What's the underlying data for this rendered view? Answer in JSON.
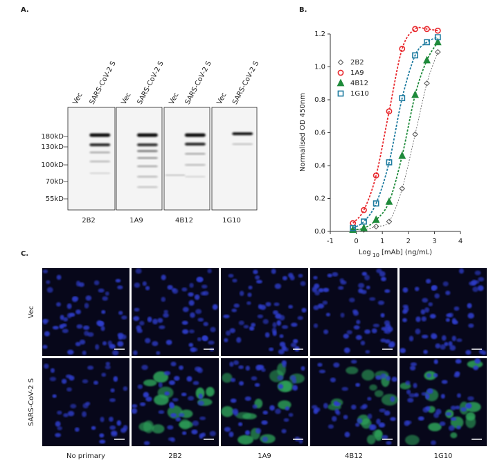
{
  "panel_a": {
    "label": "A.",
    "lanes": [
      "Vec",
      "SARS-CoV-2 S"
    ],
    "markers": [
      "180kD",
      "130kD",
      "100kD",
      "70kD",
      "55kD"
    ],
    "blots": [
      "2B2",
      "1A9",
      "4B12",
      "1G10"
    ]
  },
  "chart_data": {
    "type": "scatter",
    "panel_label": "B.",
    "xlabel": {
      "main": "Log",
      "sub": "10",
      "rest": "[mAb] (ng/mL)"
    },
    "ylabel": "Normalised OD 450nm",
    "x": [
      -0.13,
      0.29,
      0.76,
      1.26,
      1.76,
      2.26,
      2.71,
      3.13
    ],
    "series": [
      {
        "name": "2B2",
        "color": "#555555",
        "marker": "diamond",
        "values": [
          0.01,
          0.01,
          0.03,
          0.06,
          0.26,
          0.59,
          0.9,
          1.09
        ]
      },
      {
        "name": "1A9",
        "color": "#e8282d",
        "marker": "circle",
        "values": [
          0.05,
          0.13,
          0.34,
          0.73,
          1.11,
          1.23,
          1.23,
          1.22
        ]
      },
      {
        "name": "4B12",
        "color": "#1e8a3a",
        "marker": "triangle",
        "values": [
          0.01,
          0.02,
          0.07,
          0.18,
          0.46,
          0.83,
          1.04,
          1.15
        ]
      },
      {
        "name": "1G10",
        "color": "#1f7ca0",
        "marker": "square",
        "values": [
          0.02,
          0.06,
          0.17,
          0.42,
          0.81,
          1.07,
          1.15,
          1.18
        ]
      }
    ],
    "xlim": [
      -1,
      4
    ],
    "xticks": [
      -1,
      0,
      1,
      2,
      3,
      4
    ],
    "ylim": [
      0,
      1.2
    ],
    "yticks": [
      {
        "value": 0,
        "label": "0.0"
      },
      0.2,
      0.4,
      0.6,
      0.8,
      {
        "value": 1,
        "label": "1.0"
      },
      1.2
    ],
    "legend": "upper left",
    "grid": false
  },
  "panel_c": {
    "label": "C.",
    "rows": [
      "Vec",
      "SARS-CoV-2 S"
    ],
    "columns": [
      "No primary",
      "2B2",
      "1A9",
      "4B12",
      "1G10"
    ]
  }
}
